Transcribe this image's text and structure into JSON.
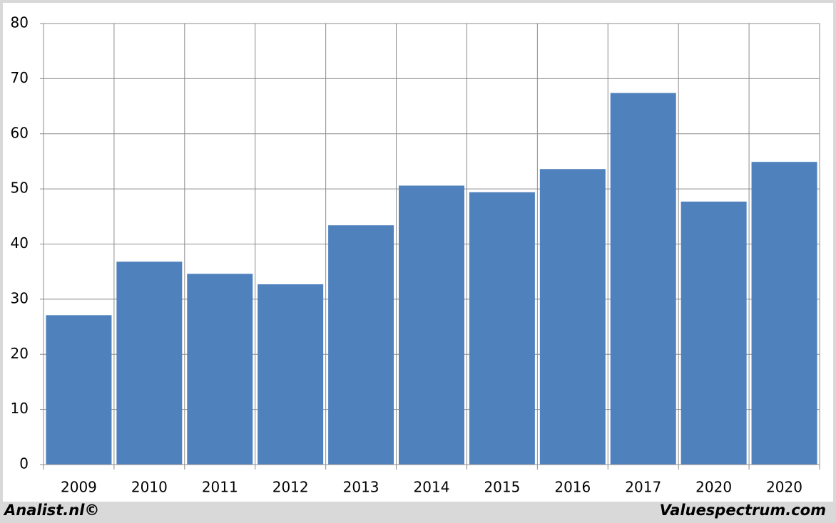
{
  "chart_data": {
    "type": "bar",
    "categories": [
      "2009",
      "2010",
      "2011",
      "2012",
      "2013",
      "2014",
      "2015",
      "2016",
      "2017",
      "2020",
      "2020"
    ],
    "values": [
      27.1,
      36.8,
      34.6,
      32.7,
      43.4,
      50.6,
      49.4,
      53.6,
      67.4,
      47.7,
      54.9
    ],
    "color": "#4f81bd",
    "ylim": [
      0,
      80
    ],
    "yticks": [
      0,
      10,
      20,
      30,
      40,
      50,
      60,
      70,
      80
    ],
    "grid": true,
    "footer_left": "Analist.nl©",
    "footer_right": "Valuespectrum.com"
  }
}
